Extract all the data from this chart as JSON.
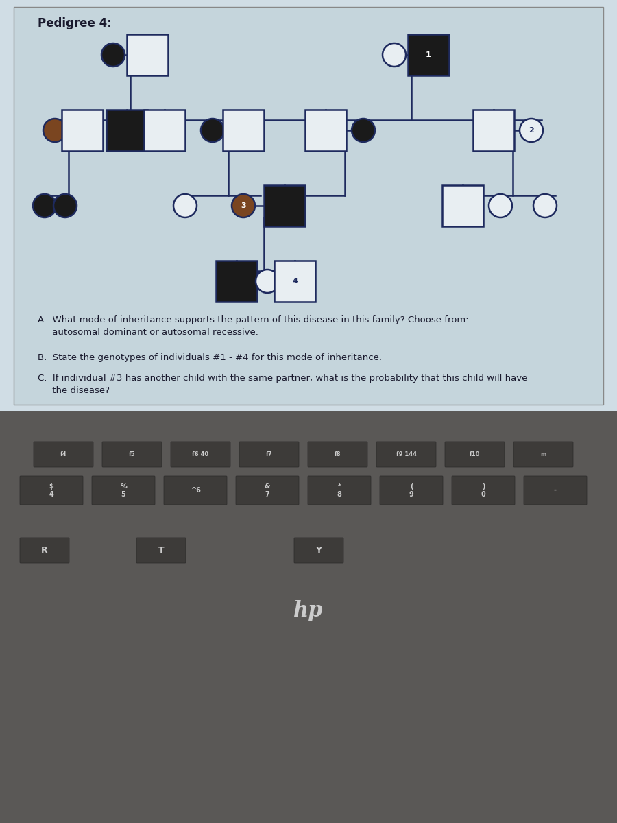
{
  "title": "Pedigree 4:",
  "bg_color": "#c8d8e0",
  "screen_bg": "#d0dde5",
  "line_color": "#1e2a5e",
  "filled_dark": "#1a1a1a",
  "filled_brown": "#7a4520",
  "open_fill": "#e8eef2",
  "text_color": "#1a1a2e",
  "q_a": "A.  What mode of inheritance supports the pattern of this disease in this family? Choose from:\n     autosomal dominant or autosomal recessive.",
  "q_b": "B.  State the genotypes of individuals #1 - #4 for this mode of inheritance.",
  "q_c": "C.  If individual #3 has another child with the same partner, what is the probability that this child will have\n     the disease?",
  "keyboard_color": "#4a4a4a",
  "key_color": "#3a3a3a",
  "screen_frame": "#5a5a5a"
}
